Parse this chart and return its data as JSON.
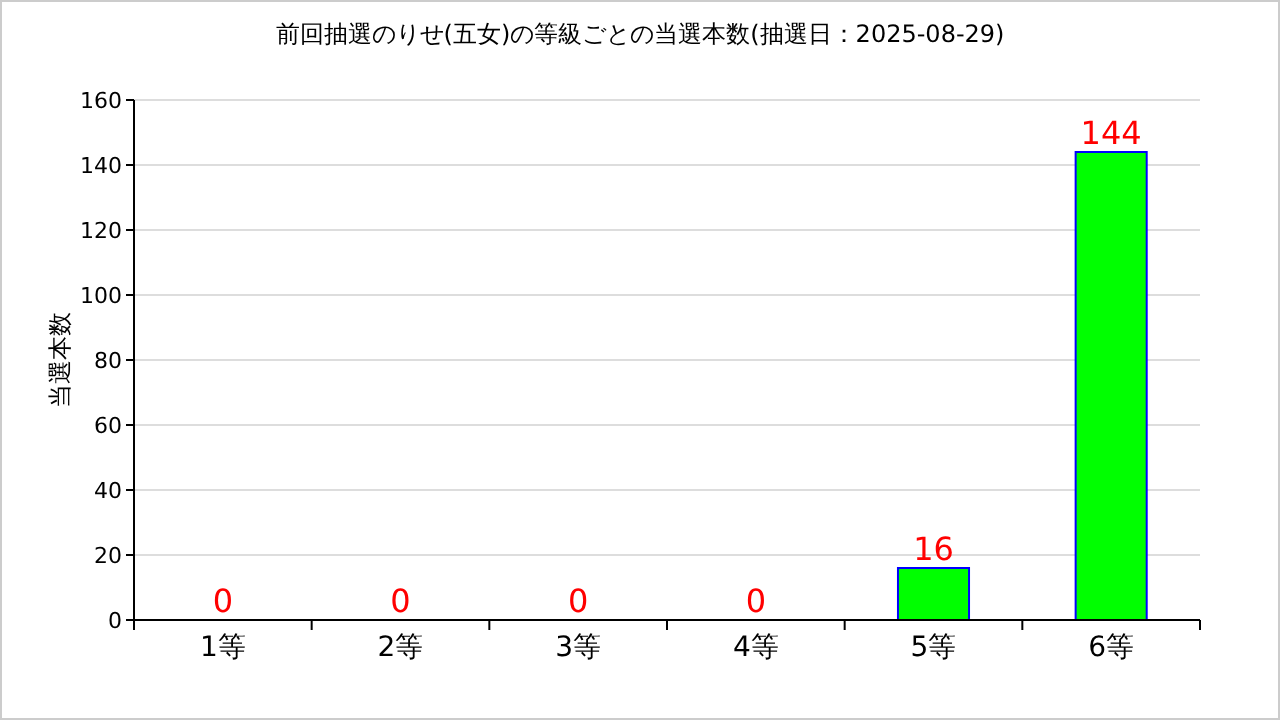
{
  "chart_data": {
    "type": "bar",
    "title": "前回抽選のりせ(五女)の等級ごとの当選本数(抽選日：2025-08-29)",
    "ylabel": "当選本数",
    "categories": [
      "1等",
      "2等",
      "3等",
      "4等",
      "5等",
      "6等"
    ],
    "values": [
      0,
      0,
      0,
      0,
      16,
      144
    ],
    "color": "#00ff00",
    "ylim": [
      0,
      160
    ],
    "yticks": [
      0,
      20,
      40,
      60,
      80,
      100,
      120,
      140,
      160
    ],
    "grid": "y",
    "data_labels": true
  }
}
